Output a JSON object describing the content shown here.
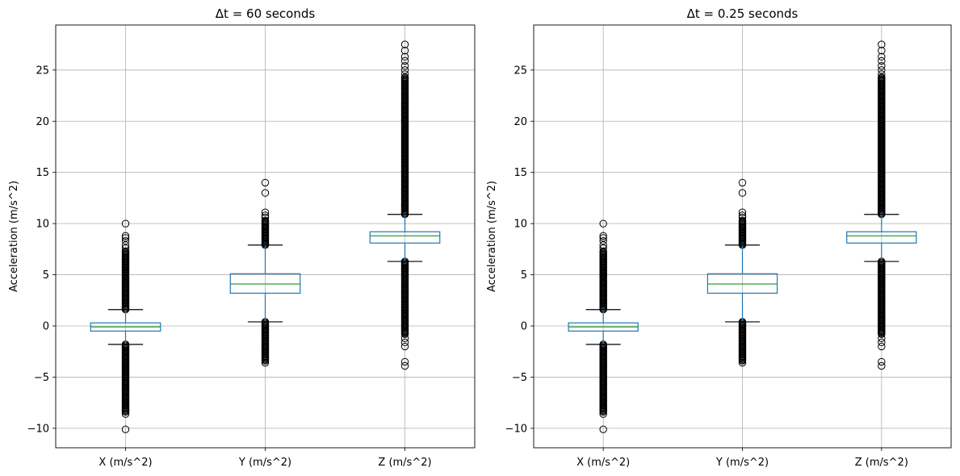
{
  "chart_data": [
    {
      "type": "box",
      "title_prefix": "Δt = ",
      "title_value": "60",
      "title_suffix": " seconds",
      "xlabel": "",
      "ylabel": "Acceleration (m/s^2)",
      "ylim": [
        -11.9,
        29.4
      ],
      "yticks": [
        -10,
        -5,
        0,
        5,
        10,
        15,
        20,
        25
      ],
      "grid": true,
      "categories": [
        "X (m/s^2)",
        "Y (m/s^2)",
        "Z (m/s^2)"
      ],
      "boxes": [
        {
          "q1": -0.5,
          "median": -0.1,
          "q3": 0.3,
          "whisker_low": -1.8,
          "whisker_high": 1.6,
          "fliers_low_range": [
            -8.3,
            -1.8
          ],
          "fliers_high_range": [
            1.6,
            7.3
          ],
          "fliers_extra": [
            -10.1,
            -8.6,
            -8.4,
            7.6,
            7.9,
            8.3,
            8.6,
            8.8,
            10.0
          ]
        },
        {
          "q1": 3.2,
          "median": 4.1,
          "q3": 5.1,
          "whisker_low": 0.4,
          "whisker_high": 7.9,
          "fliers_low_range": [
            -3.4,
            0.4
          ],
          "fliers_high_range": [
            7.9,
            10.3
          ],
          "fliers_extra": [
            -3.6,
            10.6,
            10.8,
            11.1,
            13.0,
            14.0
          ]
        },
        {
          "q1": 8.1,
          "median": 8.8,
          "q3": 9.2,
          "whisker_low": 6.3,
          "whisker_high": 10.9,
          "fliers_low_range": [
            -0.8,
            6.3
          ],
          "fliers_high_range": [
            10.9,
            24.3
          ],
          "fliers_extra": [
            -3.9,
            -3.5,
            -2.0,
            -1.6,
            -1.2,
            24.6,
            25.0,
            25.4,
            25.9,
            26.3,
            26.9,
            27.5
          ]
        }
      ]
    },
    {
      "type": "box",
      "title_prefix": "Δt = ",
      "title_value": "0.25",
      "title_suffix": " seconds",
      "xlabel": "",
      "ylabel": "Acceleration (m/s^2)",
      "ylim": [
        -11.9,
        29.4
      ],
      "yticks": [
        -10,
        -5,
        0,
        5,
        10,
        15,
        20,
        25
      ],
      "grid": true,
      "categories": [
        "X (m/s^2)",
        "Y (m/s^2)",
        "Z (m/s^2)"
      ],
      "boxes": [
        {
          "q1": -0.5,
          "median": -0.1,
          "q3": 0.3,
          "whisker_low": -1.8,
          "whisker_high": 1.6,
          "fliers_low_range": [
            -8.3,
            -1.8
          ],
          "fliers_high_range": [
            1.6,
            7.3
          ],
          "fliers_extra": [
            -10.1,
            -8.6,
            -8.4,
            7.6,
            7.9,
            8.3,
            8.6,
            8.8,
            10.0
          ]
        },
        {
          "q1": 3.2,
          "median": 4.1,
          "q3": 5.1,
          "whisker_low": 0.4,
          "whisker_high": 7.9,
          "fliers_low_range": [
            -3.4,
            0.4
          ],
          "fliers_high_range": [
            7.9,
            10.3
          ],
          "fliers_extra": [
            -3.6,
            10.6,
            10.8,
            11.1,
            13.0,
            14.0
          ]
        },
        {
          "q1": 8.1,
          "median": 8.8,
          "q3": 9.2,
          "whisker_low": 6.3,
          "whisker_high": 10.9,
          "fliers_low_range": [
            -0.8,
            6.3
          ],
          "fliers_high_range": [
            10.9,
            24.3
          ],
          "fliers_extra": [
            -3.9,
            -3.5,
            -2.0,
            -1.6,
            -1.2,
            24.6,
            25.0,
            25.4,
            25.9,
            26.3,
            26.9,
            27.5
          ]
        }
      ]
    }
  ],
  "colors": {
    "box": "#1f77b4",
    "median": "#2ca02c",
    "grid": "#b0b0b0",
    "flier": "#000000"
  }
}
